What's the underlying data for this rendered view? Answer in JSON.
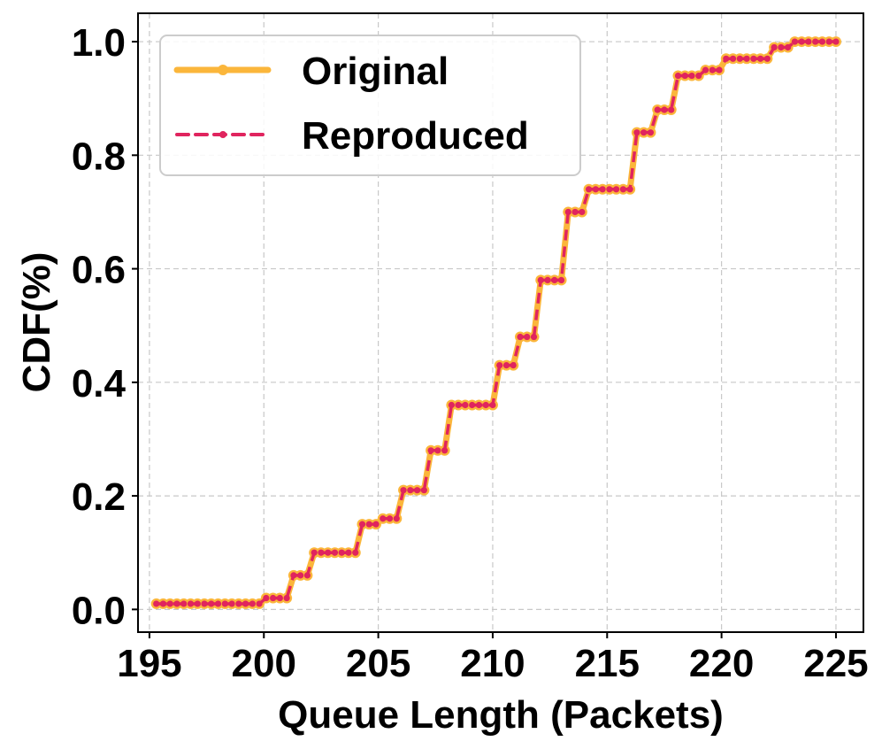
{
  "chart_data": {
    "type": "line",
    "xlabel": "Queue Length (Packets)",
    "ylabel": "CDF(%)",
    "xlim": [
      194.5,
      226.2
    ],
    "ylim": [
      -0.04,
      1.05
    ],
    "xticks": [
      195,
      200,
      205,
      210,
      215,
      220,
      225
    ],
    "xtick_labels": [
      "195",
      "200",
      "205",
      "210",
      "215",
      "220",
      "225"
    ],
    "yticks": [
      0.0,
      0.2,
      0.4,
      0.6,
      0.8,
      1.0
    ],
    "ytick_labels": [
      "0.0",
      "0.2",
      "0.4",
      "0.6",
      "0.8",
      "1.0"
    ],
    "grid": true,
    "legend_position": "top-left",
    "x": [
      195.3,
      195.6,
      195.9,
      196.2,
      196.5,
      196.8,
      197.1,
      197.4,
      197.7,
      198.0,
      198.3,
      198.6,
      198.9,
      199.2,
      199.5,
      199.8,
      200.1,
      200.4,
      200.7,
      201.0,
      201.3,
      201.6,
      201.9,
      202.2,
      202.5,
      202.8,
      203.1,
      203.4,
      203.7,
      204.0,
      204.3,
      204.6,
      204.9,
      205.2,
      205.5,
      205.8,
      206.1,
      206.4,
      206.7,
      207.0,
      207.3,
      207.6,
      207.9,
      208.2,
      208.5,
      208.8,
      209.1,
      209.4,
      209.7,
      210.0,
      210.3,
      210.6,
      210.9,
      211.2,
      211.5,
      211.8,
      212.1,
      212.4,
      212.7,
      213.0,
      213.3,
      213.6,
      213.9,
      214.2,
      214.5,
      214.8,
      215.1,
      215.4,
      215.7,
      216.0,
      216.3,
      216.6,
      216.9,
      217.2,
      217.5,
      217.8,
      218.1,
      218.4,
      218.7,
      219.0,
      219.3,
      219.6,
      219.9,
      220.2,
      220.5,
      220.8,
      221.1,
      221.4,
      221.7,
      222.0,
      222.3,
      222.6,
      222.9,
      223.2,
      223.5,
      223.8,
      224.1,
      224.4,
      224.7,
      225.0
    ],
    "series": [
      {
        "name": "Original",
        "color": "#FBB63B",
        "style": "solid",
        "y": [
          0.01,
          0.01,
          0.01,
          0.01,
          0.01,
          0.01,
          0.01,
          0.01,
          0.01,
          0.01,
          0.01,
          0.01,
          0.01,
          0.01,
          0.01,
          0.01,
          0.02,
          0.02,
          0.02,
          0.02,
          0.06,
          0.06,
          0.06,
          0.1,
          0.1,
          0.1,
          0.1,
          0.1,
          0.1,
          0.1,
          0.15,
          0.15,
          0.15,
          0.16,
          0.16,
          0.16,
          0.21,
          0.21,
          0.21,
          0.21,
          0.28,
          0.28,
          0.28,
          0.36,
          0.36,
          0.36,
          0.36,
          0.36,
          0.36,
          0.36,
          0.43,
          0.43,
          0.43,
          0.48,
          0.48,
          0.48,
          0.58,
          0.58,
          0.58,
          0.58,
          0.7,
          0.7,
          0.7,
          0.74,
          0.74,
          0.74,
          0.74,
          0.74,
          0.74,
          0.74,
          0.84,
          0.84,
          0.84,
          0.88,
          0.88,
          0.88,
          0.94,
          0.94,
          0.94,
          0.94,
          0.95,
          0.95,
          0.95,
          0.97,
          0.97,
          0.97,
          0.97,
          0.97,
          0.97,
          0.97,
          0.99,
          0.99,
          0.99,
          1.0,
          1.0,
          1.0,
          1.0,
          1.0,
          1.0,
          1.0
        ]
      },
      {
        "name": "Reproduced",
        "color": "#E0245E",
        "style": "dashed",
        "y": [
          0.01,
          0.01,
          0.01,
          0.01,
          0.01,
          0.01,
          0.01,
          0.01,
          0.01,
          0.01,
          0.01,
          0.01,
          0.01,
          0.01,
          0.01,
          0.01,
          0.02,
          0.02,
          0.02,
          0.02,
          0.06,
          0.06,
          0.06,
          0.1,
          0.1,
          0.1,
          0.1,
          0.1,
          0.1,
          0.1,
          0.15,
          0.15,
          0.15,
          0.16,
          0.16,
          0.16,
          0.21,
          0.21,
          0.21,
          0.21,
          0.28,
          0.28,
          0.28,
          0.36,
          0.36,
          0.36,
          0.36,
          0.36,
          0.36,
          0.36,
          0.43,
          0.43,
          0.43,
          0.48,
          0.48,
          0.48,
          0.58,
          0.58,
          0.58,
          0.58,
          0.7,
          0.7,
          0.7,
          0.74,
          0.74,
          0.74,
          0.74,
          0.74,
          0.74,
          0.74,
          0.84,
          0.84,
          0.84,
          0.88,
          0.88,
          0.88,
          0.94,
          0.94,
          0.94,
          0.94,
          0.95,
          0.95,
          0.95,
          0.97,
          0.97,
          0.97,
          0.97,
          0.97,
          0.97,
          0.97,
          0.99,
          0.99,
          0.99,
          1.0,
          1.0,
          1.0,
          1.0,
          1.0,
          1.0,
          1.0
        ]
      }
    ]
  }
}
